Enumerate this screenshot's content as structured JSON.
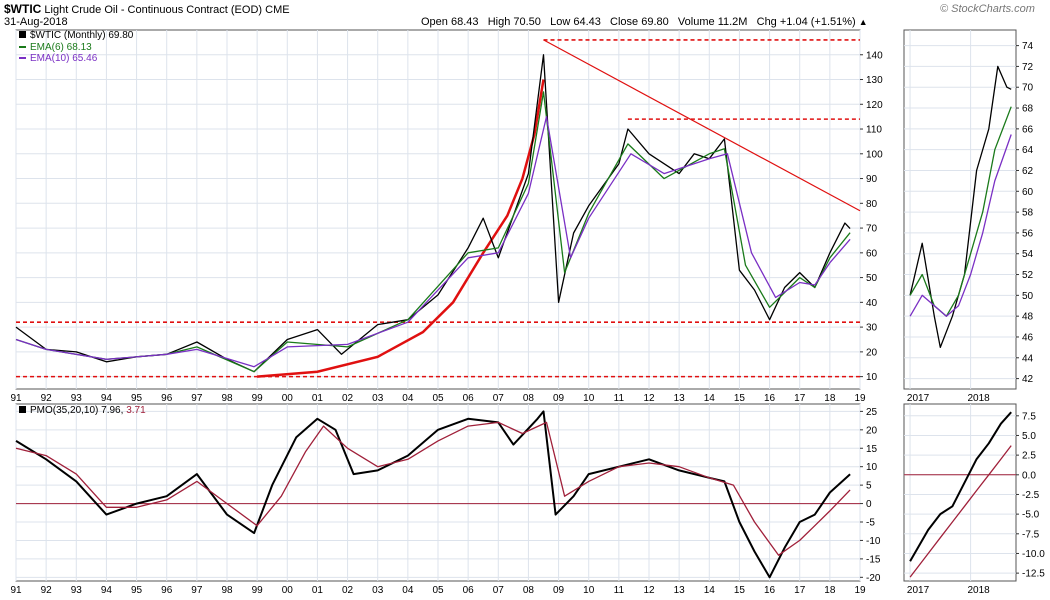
{
  "header": {
    "symbol": "$WTIC",
    "title": "Light Crude Oil - Continuous Contract (EOD)",
    "exchange": "CME",
    "date": "31-Aug-2018",
    "watermark": "© StockCharts.com",
    "quote": {
      "open_label": "Open",
      "open": "68.43",
      "high_label": "High",
      "high": "70.50",
      "low_label": "Low",
      "low": "64.43",
      "close_label": "Close",
      "close": "69.80",
      "volume_label": "Volume",
      "volume": "11.2M",
      "chg_label": "Chg",
      "chg": "+1.04 (+1.51%)"
    }
  },
  "legend": {
    "price": "$WTIC (Monthly) 69.80",
    "ema6": "EMA(6) 68.13",
    "ema10": "EMA(10) 65.46",
    "pmo_label": "PMO(35,20,10)",
    "pmo_value": "7.96",
    "pmo_signal": "3.71"
  },
  "colors": {
    "price": "#000000",
    "ema6": "#1a7a1a",
    "ema10": "#7a2fc4",
    "pmo": "#000000",
    "pmo_signal": "#a0203a",
    "annotation": "#e01010",
    "zero_line": "#a0203a",
    "grid": "#dde3ec"
  },
  "chart_data": [
    {
      "type": "line",
      "panel": "main-price",
      "title": "$WTIC (Monthly) 69.80",
      "ylim": [
        5,
        150
      ],
      "y_ticks": [
        10,
        20,
        30,
        40,
        50,
        60,
        70,
        80,
        90,
        100,
        110,
        120,
        130,
        140
      ],
      "x_ticks": [
        "91",
        "92",
        "93",
        "94",
        "95",
        "96",
        "97",
        "98",
        "99",
        "00",
        "01",
        "02",
        "03",
        "04",
        "05",
        "06",
        "07",
        "08",
        "09",
        "10",
        "11",
        "12",
        "13",
        "14",
        "15",
        "16",
        "17",
        "18",
        "19"
      ],
      "x_range": [
        1991.0,
        2019.0
      ],
      "grid": true,
      "series": [
        {
          "name": "$WTIC (Monthly)",
          "x": [
            1991.0,
            1992.0,
            1993.0,
            1994.0,
            1995.0,
            1996.0,
            1997.0,
            1998.0,
            1998.9,
            2000.0,
            2001.0,
            2001.8,
            2003.0,
            2004.0,
            2005.0,
            2006.0,
            2006.5,
            2007.0,
            2008.0,
            2008.5,
            2009.0,
            2009.5,
            2010.0,
            2011.0,
            2011.3,
            2012.0,
            2013.0,
            2013.5,
            2014.0,
            2014.5,
            2015.0,
            2015.5,
            2016.0,
            2016.5,
            2017.0,
            2017.5,
            2018.0,
            2018.5,
            2018.67
          ],
          "y": [
            30,
            21,
            20,
            16,
            18,
            19,
            24,
            17,
            12,
            25,
            29,
            19,
            31,
            33,
            43,
            62,
            74,
            58,
            92,
            140,
            40,
            68,
            79,
            96,
            110,
            100,
            92,
            100,
            98,
            106,
            53,
            45,
            33,
            46,
            52,
            46,
            60,
            72,
            69.8
          ]
        },
        {
          "name": "EMA(6)",
          "x": [
            1991.0,
            1992.0,
            1994.0,
            1996.0,
            1997.0,
            1998.9,
            2000.0,
            2002.0,
            2004.0,
            2006.0,
            2007.0,
            2008.0,
            2008.5,
            2009.2,
            2010.0,
            2011.3,
            2012.5,
            2014.0,
            2014.5,
            2015.2,
            2016.0,
            2017.0,
            2017.5,
            2018.0,
            2018.67
          ],
          "y": [
            25,
            21,
            17,
            19,
            22,
            12,
            24,
            22,
            33,
            60,
            62,
            88,
            125,
            52,
            76,
            104,
            90,
            100,
            102,
            55,
            38,
            50,
            46,
            58,
            68.13
          ]
        },
        {
          "name": "EMA(10)",
          "x": [
            1991.0,
            1992.0,
            1994.0,
            1996.0,
            1997.0,
            1998.9,
            2000.0,
            2002.0,
            2004.0,
            2006.0,
            2007.0,
            2008.0,
            2008.6,
            2009.4,
            2010.0,
            2011.4,
            2012.5,
            2014.0,
            2014.6,
            2015.4,
            2016.2,
            2017.0,
            2017.5,
            2018.0,
            2018.67
          ],
          "y": [
            25,
            21,
            17,
            19,
            21,
            14,
            22,
            23,
            32,
            58,
            60,
            84,
            115,
            58,
            74,
            100,
            92,
            98,
            100,
            60,
            42,
            48,
            47,
            56,
            65.46
          ]
        }
      ],
      "annotations": [
        {
          "type": "hline",
          "y": 146,
          "x": [
            2008.5,
            2019.0
          ]
        },
        {
          "type": "hline",
          "y": 114,
          "x": [
            2011.3,
            2019.0
          ]
        },
        {
          "type": "hline",
          "y": 32,
          "x": [
            1991.0,
            2019.0
          ]
        },
        {
          "type": "hline",
          "y": 10,
          "x": [
            1991.0,
            2019.0
          ]
        },
        {
          "type": "trendline",
          "x": [
            2008.5,
            2019.0
          ],
          "y": [
            146,
            77
          ]
        },
        {
          "type": "parabolic-curve",
          "x": [
            1999.0,
            2001.0,
            2003.0,
            2004.5,
            2005.5,
            2006.5,
            2007.3,
            2007.8,
            2008.2,
            2008.5
          ],
          "y": [
            10,
            12,
            18,
            28,
            40,
            60,
            75,
            90,
            108,
            130
          ]
        }
      ]
    },
    {
      "type": "line",
      "panel": "inset-price",
      "ylim": [
        41,
        75.5
      ],
      "y_ticks": [
        42,
        44,
        46,
        48,
        50,
        52,
        54,
        56,
        58,
        60,
        62,
        64,
        66,
        68,
        70,
        72,
        74
      ],
      "x_ticks": [
        "2017",
        "2018"
      ],
      "x_range": [
        2016.9,
        2018.75
      ],
      "series": [
        {
          "name": "$WTIC",
          "x": [
            2017.0,
            2017.2,
            2017.4,
            2017.5,
            2017.7,
            2017.9,
            2018.1,
            2018.3,
            2018.45,
            2018.6,
            2018.67
          ],
          "y": [
            50,
            55,
            48,
            45,
            48,
            52,
            62,
            66,
            72,
            70,
            69.8
          ]
        },
        {
          "name": "EMA(6)",
          "x": [
            2017.0,
            2017.2,
            2017.4,
            2017.6,
            2017.8,
            2018.0,
            2018.2,
            2018.4,
            2018.67
          ],
          "y": [
            50,
            52,
            49,
            48,
            50,
            54,
            58,
            64,
            68.13
          ]
        },
        {
          "name": "EMA(10)",
          "x": [
            2017.0,
            2017.2,
            2017.4,
            2017.6,
            2017.8,
            2018.0,
            2018.2,
            2018.4,
            2018.67
          ],
          "y": [
            48,
            50,
            49,
            48,
            49,
            52,
            56,
            61,
            65.46
          ]
        }
      ]
    },
    {
      "type": "line",
      "panel": "main-pmo",
      "title": "PMO(35,20,10) 7.96, 3.71",
      "ylim": [
        -21,
        27
      ],
      "y_ticks": [
        25,
        20,
        15,
        10,
        5,
        0,
        -5,
        -10,
        -15,
        -20
      ],
      "x_ticks": [
        "91",
        "92",
        "93",
        "94",
        "95",
        "96",
        "97",
        "98",
        "99",
        "00",
        "01",
        "02",
        "03",
        "04",
        "05",
        "06",
        "07",
        "08",
        "09",
        "10",
        "11",
        "12",
        "13",
        "14",
        "15",
        "16",
        "17",
        "18",
        "19"
      ],
      "x_range": [
        1991.0,
        2019.0
      ],
      "series": [
        {
          "name": "PMO",
          "x": [
            1991.0,
            1992.0,
            1993.0,
            1994.0,
            1995.0,
            1996.0,
            1997.0,
            1998.0,
            1998.9,
            1999.5,
            2000.3,
            2001.0,
            2001.6,
            2002.2,
            2003.0,
            2004.0,
            2005.0,
            2006.0,
            2007.0,
            2007.5,
            2008.3,
            2008.5,
            2008.9,
            2009.5,
            2010.0,
            2011.0,
            2012.0,
            2013.0,
            2014.0,
            2014.5,
            2015.0,
            2015.5,
            2016.0,
            2016.5,
            2017.0,
            2017.5,
            2018.0,
            2018.67
          ],
          "y": [
            17,
            12,
            6,
            -3,
            0,
            2,
            8,
            -3,
            -8,
            5,
            18,
            23,
            20,
            8,
            9,
            13,
            20,
            23,
            22,
            16,
            23,
            25,
            -3,
            2,
            8,
            10,
            12,
            9,
            7,
            6,
            -5,
            -13,
            -20,
            -12,
            -5,
            -3,
            3,
            7.96
          ]
        },
        {
          "name": "Signal",
          "x": [
            1991.0,
            1992.0,
            1993.0,
            1994.0,
            1995.0,
            1996.0,
            1997.0,
            1998.0,
            1999.0,
            1999.8,
            2000.6,
            2001.2,
            2002.0,
            2003.0,
            2004.0,
            2005.0,
            2006.0,
            2007.0,
            2007.8,
            2008.6,
            2009.2,
            2010.0,
            2011.0,
            2012.0,
            2013.0,
            2014.0,
            2014.8,
            2015.5,
            2016.3,
            2017.0,
            2017.5,
            2018.0,
            2018.67
          ],
          "y": [
            15,
            13,
            8,
            -1,
            -1,
            1,
            6,
            0,
            -6,
            2,
            14,
            21,
            15,
            10,
            12,
            17,
            21,
            22,
            19,
            22,
            2,
            6,
            10,
            11,
            10,
            7,
            5,
            -5,
            -14,
            -10,
            -6,
            -2,
            3.71
          ]
        }
      ]
    },
    {
      "type": "line",
      "panel": "inset-pmo",
      "ylim": [
        -13.5,
        9
      ],
      "y_ticks": [
        7.5,
        5.0,
        2.5,
        0.0,
        -2.5,
        -5.0,
        -7.5,
        -10.0,
        -12.5
      ],
      "x_ticks": [
        "2017",
        "2018"
      ],
      "x_range": [
        2016.9,
        2018.75
      ],
      "series": [
        {
          "name": "PMO",
          "x": [
            2017.0,
            2017.3,
            2017.5,
            2017.7,
            2017.9,
            2018.1,
            2018.3,
            2018.5,
            2018.67
          ],
          "y": [
            -11,
            -7,
            -5,
            -4,
            -1,
            2,
            4,
            6.5,
            7.96
          ]
        },
        {
          "name": "Signal",
          "x": [
            2017.0,
            2017.3,
            2017.5,
            2017.7,
            2017.9,
            2018.1,
            2018.3,
            2018.5,
            2018.67
          ],
          "y": [
            -13,
            -10,
            -8,
            -6,
            -4,
            -2,
            0,
            2,
            3.71
          ]
        }
      ]
    }
  ]
}
